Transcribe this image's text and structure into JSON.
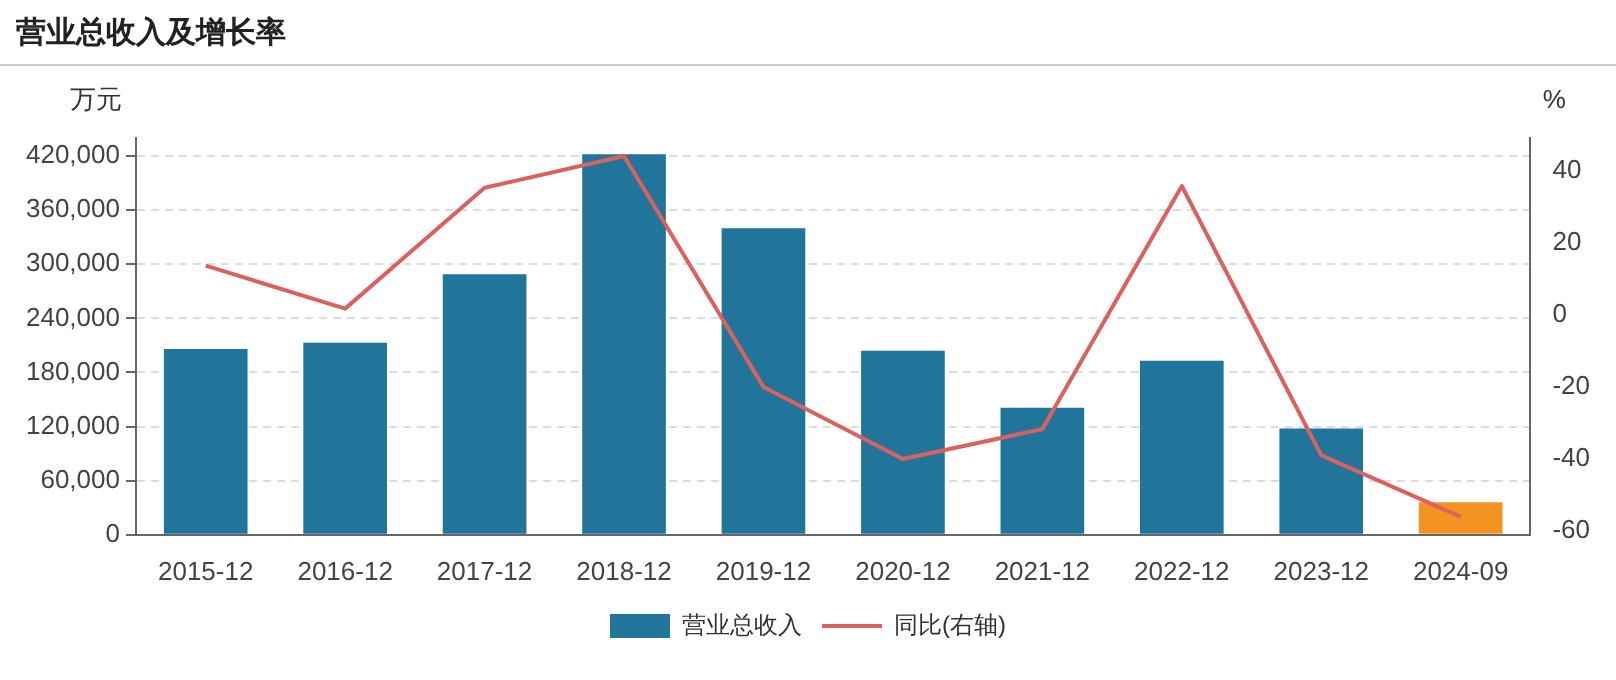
{
  "chart_data": {
    "type": "bar",
    "title": "营业总收入及增长率",
    "ylabel": "万元",
    "y2label": "%",
    "categories": [
      "2015-12",
      "2016-12",
      "2017-12",
      "2018-12",
      "2019-12",
      "2020-12",
      "2021-12",
      "2022-12",
      "2023-12",
      "2024-09"
    ],
    "series": [
      {
        "name": "营业总收入",
        "color": "#21759b",
        "colors": [
          "#21759b",
          "#21759b",
          "#21759b",
          "#21759b",
          "#21759b",
          "#21759b",
          "#21759b",
          "#21759b",
          "#21759b",
          "#f39422"
        ],
        "values": [
          206000,
          213000,
          289000,
          422000,
          340000,
          204000,
          141000,
          193000,
          118000,
          36000
        ]
      },
      {
        "name": "同比(右轴)",
        "type": "line",
        "axis": "y2",
        "color": "#d9625f",
        "values": [
          13.6,
          1.7,
          35.2,
          44,
          -20,
          -40,
          -31.7,
          35.7,
          -39,
          -56
        ]
      }
    ],
    "ylim": [
      0,
      440000
    ],
    "yticks": [
      {
        "value": 0,
        "label": "0"
      },
      {
        "value": 60000,
        "label": "60,000"
      },
      {
        "value": 120000,
        "label": "120,000"
      },
      {
        "value": 180000,
        "label": "180,000"
      },
      {
        "value": 240000,
        "label": "240,000"
      },
      {
        "value": 300000,
        "label": "300,000"
      },
      {
        "value": 360000,
        "label": "360,000"
      },
      {
        "value": 420000,
        "label": "420,000"
      }
    ],
    "y2lim": [
      -61,
      49
    ],
    "y2ticks": [
      -60,
      -40,
      -20,
      0,
      20,
      40
    ],
    "grid": "y",
    "legend": "bottom",
    "marker": "none",
    "line_style": "solid"
  }
}
